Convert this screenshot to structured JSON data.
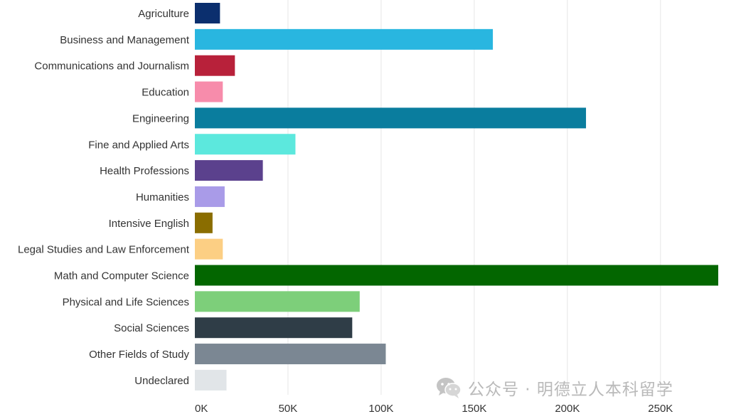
{
  "chart_data": {
    "type": "bar",
    "orientation": "horizontal",
    "categories": [
      "Agriculture",
      "Business and Management",
      "Communications and Journalism",
      "Education",
      "Engineering",
      "Fine and Applied Arts",
      "Health Professions",
      "Humanities",
      "Intensive English",
      "Legal Studies and Law Enforcement",
      "Math and Computer Science",
      "Physical and Life Sciences",
      "Social Sciences",
      "Other Fields of Study",
      "Undeclared"
    ],
    "values": [
      13500,
      160000,
      21500,
      15000,
      210000,
      54000,
      36500,
      16000,
      9500,
      15000,
      281000,
      88500,
      84500,
      102500,
      17000
    ],
    "colors": [
      "#0b2f6e",
      "#29b6e0",
      "#b8213a",
      "#f78cab",
      "#0a7d9e",
      "#5ce8dd",
      "#5b418d",
      "#a99be8",
      "#8a6d00",
      "#fccf84",
      "#036600",
      "#7dcf7a",
      "#2f3d47",
      "#7b8793",
      "#e1e5e8"
    ],
    "xlim": [
      0,
      281000
    ],
    "xticks": [
      0,
      50000,
      100000,
      150000,
      200000,
      250000
    ],
    "xtick_labels": [
      "0K",
      "50K",
      "100K",
      "150K",
      "200K",
      "250K"
    ],
    "grid": "vertical",
    "title": "",
    "xlabel": "",
    "ylabel": ""
  },
  "watermark": {
    "text": "公众号 · 明德立人本科留学",
    "icon": "wechat-icon",
    "color": "#b9b9b9"
  }
}
